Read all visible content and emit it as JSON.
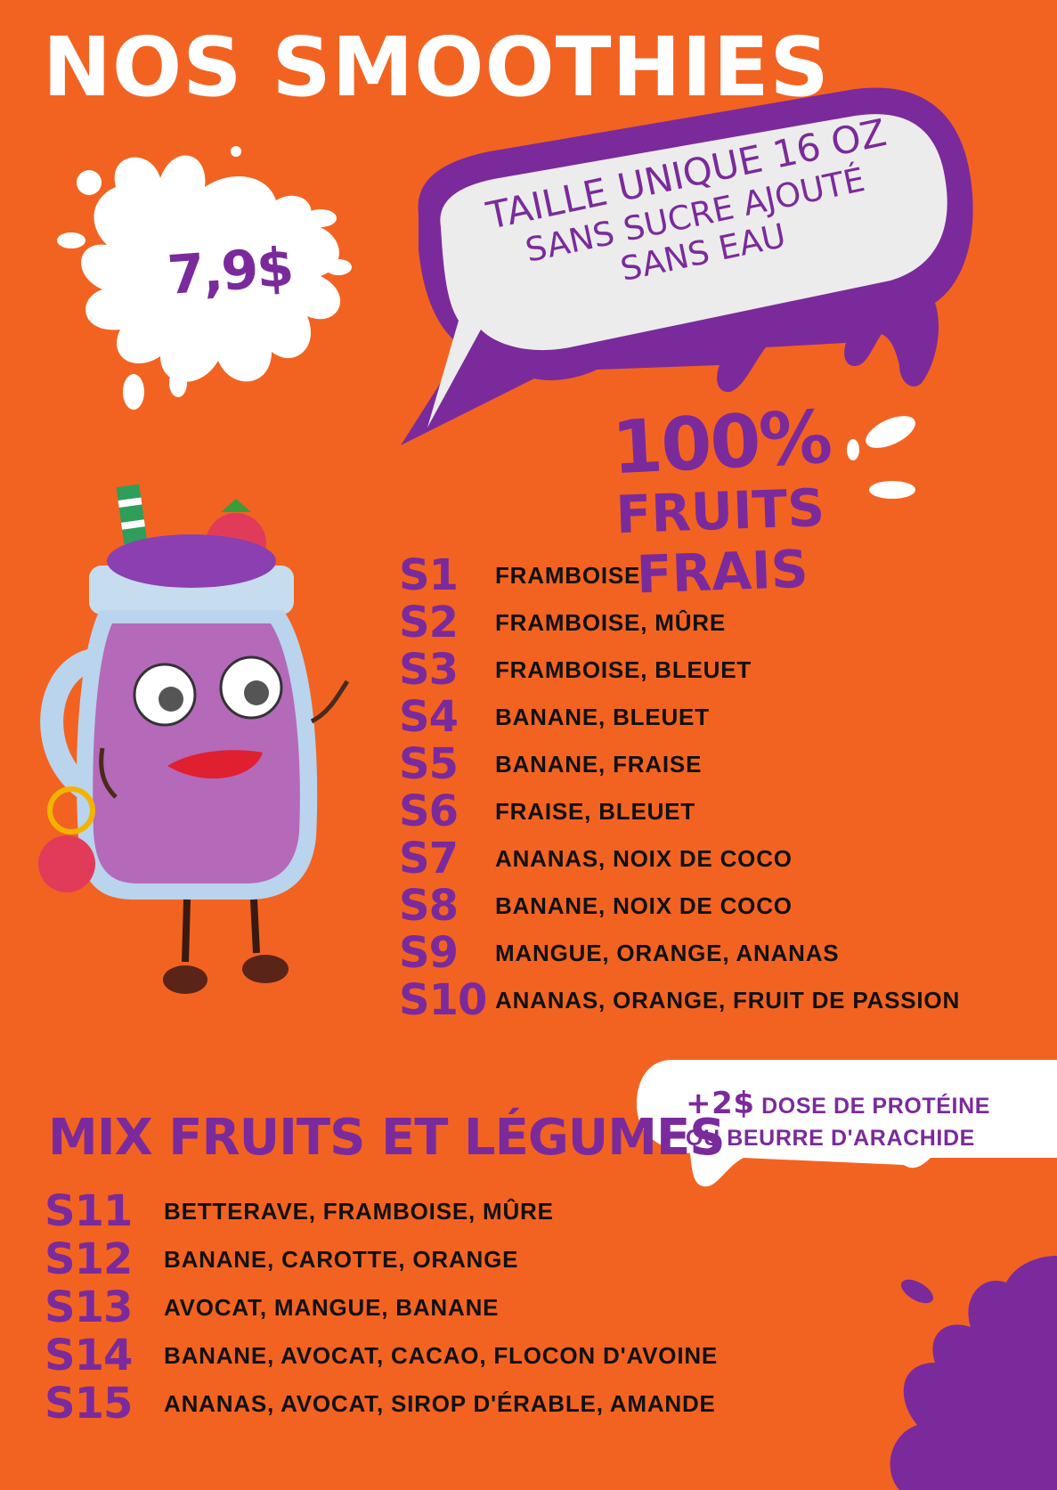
{
  "title": "NOS SMOOTHIES",
  "price": "7,9$",
  "features": [
    "TAILLE UNIQUE 16 OZ",
    "SANS SUCRE AJOUTÉ",
    "SANS EAU"
  ],
  "fresh": {
    "percent": "100%",
    "label": "FRUITS FRAIS"
  },
  "fruit_menu": [
    {
      "code": "S1",
      "description": "FRAMBOISE"
    },
    {
      "code": "S2",
      "description": "FRAMBOISE, MÛRE"
    },
    {
      "code": "S3",
      "description": "FRAMBOISE, BLEUET"
    },
    {
      "code": "S4",
      "description": "BANANE, BLEUET"
    },
    {
      "code": "S5",
      "description": "BANANE, FRAISE"
    },
    {
      "code": "S6",
      "description": "FRAISE, BLEUET"
    },
    {
      "code": "S7",
      "description": "ANANAS, NOIX DE COCO"
    },
    {
      "code": "S8",
      "description": "BANANE, NOIX DE COCO"
    },
    {
      "code": "S9",
      "description": "MANGUE, ORANGE, ANANAS"
    },
    {
      "code": "S10",
      "description": "ANANAS, ORANGE, FRUIT DE PASSION"
    }
  ],
  "promo": {
    "amount": "+2$",
    "line1": "DOSE DE PROTÉINE",
    "line2": "OU BEURRE D'ARACHIDE"
  },
  "mix_title": "MIX FRUITS ET LÉGUMES",
  "mix_menu": [
    {
      "code": "S11",
      "description": "BETTERAVE, FRAMBOISE, MÛRE"
    },
    {
      "code": "S12",
      "description": "BANANE, CAROTTE, ORANGE"
    },
    {
      "code": "S13",
      "description": "AVOCAT, MANGUE, BANANE"
    },
    {
      "code": "S14",
      "description": "BANANE, AVOCAT, CACAO, FLOCON D'AVOINE"
    },
    {
      "code": "S15",
      "description": "ANANAS, AVOCAT, SIROP D'ÉRABLE, AMANDE"
    }
  ],
  "colors": {
    "background": "#f26322",
    "purple": "#7b2a9b",
    "white": "#ffffff",
    "text": "#111111"
  }
}
